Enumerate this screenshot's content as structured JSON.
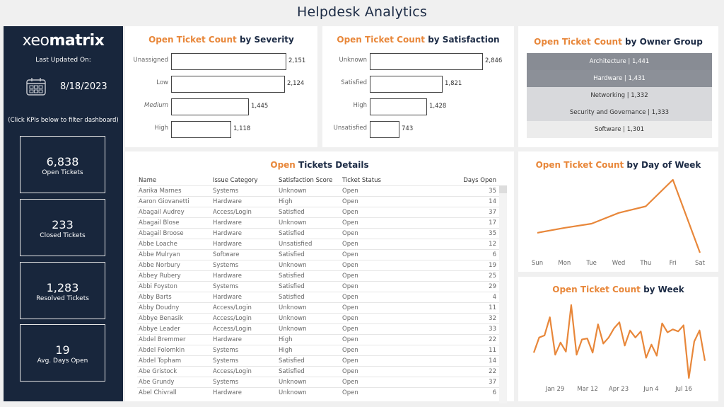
{
  "header": {
    "title": "Helpdesk Analytics"
  },
  "sidebar": {
    "logo": {
      "prefix": "xeo",
      "suffix": "matrix"
    },
    "last_updated_label": "Last Updated On:",
    "date": "8/18/2023",
    "filter_hint": "(Click KPIs below to filter dashboard)",
    "kpis": [
      {
        "value": "6,838",
        "label": "Open Tickets"
      },
      {
        "value": "233",
        "label": "Closed Tickets"
      },
      {
        "value": "1,283",
        "label": "Resolved Tickets"
      },
      {
        "value": "19",
        "label": "Avg. Days Open"
      }
    ]
  },
  "colors": {
    "accent": "#e8873a",
    "navy": "#18263c",
    "title": "#1c2b45"
  },
  "severity": {
    "title_accent": "Open Ticket Count",
    "title_rest": " by Severity",
    "rows": [
      {
        "label": "Unassigned",
        "value": "2,151",
        "n": 2151
      },
      {
        "label": "Low",
        "value": "2,124",
        "n": 2124
      },
      {
        "label": "Medium",
        "value": "1,445",
        "n": 1445
      },
      {
        "label": "High",
        "value": "1,118",
        "n": 1118
      }
    ]
  },
  "satisfaction": {
    "title_accent": "Open Ticket Count",
    "title_rest": " by Satisfaction",
    "rows": [
      {
        "label": "Unknown",
        "value": "2,846",
        "n": 2846
      },
      {
        "label": "Satisfied",
        "value": "1,821",
        "n": 1821
      },
      {
        "label": "High",
        "value": "1,428",
        "n": 1428
      },
      {
        "label": "Unsatisfied",
        "value": "743",
        "n": 743
      }
    ]
  },
  "owner_group": {
    "title_accent": "Open Ticket Count",
    "title_rest": " by Owner Group",
    "rows": [
      {
        "label": "Architecture | 1,441",
        "bg": "#888c94",
        "fg": "#ffffff"
      },
      {
        "label": "Hardware | 1,431",
        "bg": "#8c9098",
        "fg": "#ffffff"
      },
      {
        "label": "Networking | 1,332",
        "bg": "#d8d9dc",
        "fg": "#333333"
      },
      {
        "label": "Security and Governance | 1,333",
        "bg": "#d8d9dc",
        "fg": "#333333"
      },
      {
        "label": "Software | 1,301",
        "bg": "#ececec",
        "fg": "#333333"
      }
    ]
  },
  "details": {
    "title_accent": "Open",
    "title_rest": " Tickets Details",
    "columns": [
      "Name",
      "Issue Category",
      "Satisfaction Score",
      "Ticket Status",
      "Days Open"
    ],
    "rows": [
      [
        "Aarika Marnes",
        "Systems",
        "Unknown",
        "Open",
        "35"
      ],
      [
        "Aaron Giovanetti",
        "Hardware",
        "High",
        "Open",
        "14"
      ],
      [
        "Abagail Audrey",
        "Access/Login",
        "Satisfied",
        "Open",
        "37"
      ],
      [
        "Abagail Blose",
        "Hardware",
        "Unknown",
        "Open",
        "17"
      ],
      [
        "Abagail Broose",
        "Hardware",
        "Satisfied",
        "Open",
        "35"
      ],
      [
        "Abbe Loache",
        "Hardware",
        "Unsatisfied",
        "Open",
        "12"
      ],
      [
        "Abbe Mulryan",
        "Software",
        "Satisfied",
        "Open",
        "6"
      ],
      [
        "Abbe Norbury",
        "Systems",
        "Unknown",
        "Open",
        "19"
      ],
      [
        "Abbey Rubery",
        "Hardware",
        "Satisfied",
        "Open",
        "25"
      ],
      [
        "Abbi Foyston",
        "Systems",
        "Satisfied",
        "Open",
        "29"
      ],
      [
        "Abby Barts",
        "Hardware",
        "Satisfied",
        "Open",
        "4"
      ],
      [
        "Abby Doudny",
        "Access/Login",
        "Unknown",
        "Open",
        "11"
      ],
      [
        "Abbye Benasik",
        "Access/Login",
        "Unknown",
        "Open",
        "32"
      ],
      [
        "Abbye Leader",
        "Access/Login",
        "Unknown",
        "Open",
        "33"
      ],
      [
        "Abdel Bremmer",
        "Hardware",
        "High",
        "Open",
        "22"
      ],
      [
        "Abdel Folomkin",
        "Systems",
        "High",
        "Open",
        "11"
      ],
      [
        "Abdel Topham",
        "Systems",
        "Satisfied",
        "Open",
        "14"
      ],
      [
        "Abe Gristock",
        "Access/Login",
        "Satisfied",
        "Open",
        "22"
      ],
      [
        "Abe Grundy",
        "Systems",
        "Unknown",
        "Open",
        "37"
      ],
      [
        "Abel Chivrall",
        "Hardware",
        "Unknown",
        "Open",
        "6"
      ]
    ]
  },
  "day_of_week": {
    "title_accent": "Open Ticket Count",
    "title_rest": " by Day of Week"
  },
  "weekly": {
    "title_accent": "Open Ticket Count",
    "title_rest": " by Week"
  },
  "chart_data": [
    {
      "type": "bar",
      "title": "Open Ticket Count by Severity",
      "categories": [
        "Unassigned",
        "Low",
        "Medium",
        "High"
      ],
      "values": [
        2151,
        2124,
        1445,
        1118
      ]
    },
    {
      "type": "bar",
      "title": "Open Ticket Count by Satisfaction",
      "categories": [
        "Unknown",
        "Satisfied",
        "High",
        "Unsatisfied"
      ],
      "values": [
        2846,
        1821,
        1428,
        743
      ]
    },
    {
      "type": "table",
      "title": "Open Ticket Count by Owner Group",
      "categories": [
        "Architecture",
        "Hardware",
        "Networking",
        "Security and Governance",
        "Software"
      ],
      "values": [
        1441,
        1431,
        1332,
        1333,
        1301
      ]
    },
    {
      "type": "line",
      "title": "Open Ticket Count by Day of Week",
      "categories": [
        "Sun",
        "Mon",
        "Tue",
        "Wed",
        "Thu",
        "Fri",
        "Sat"
      ],
      "values": [
        840,
        900,
        950,
        1080,
        1160,
        1480,
        600
      ],
      "note": "values estimated from line shape (no y-axis shown)"
    },
    {
      "type": "line",
      "title": "Open Ticket Count by Week",
      "xtick_labels": [
        "Jan 29",
        "Mar 12",
        "Apr 23",
        "Jun 4",
        "Jul 16"
      ],
      "values": [
        165,
        180,
        182,
        200,
        163,
        175,
        166,
        212,
        163,
        178,
        179,
        165,
        193,
        174,
        180,
        189,
        195,
        172,
        187,
        180,
        186,
        160,
        173,
        162,
        194,
        185,
        188,
        186,
        192,
        140,
        176,
        187,
        157
      ],
      "note": "relative weekly values estimated from line shape (no y-axis shown)"
    }
  ]
}
